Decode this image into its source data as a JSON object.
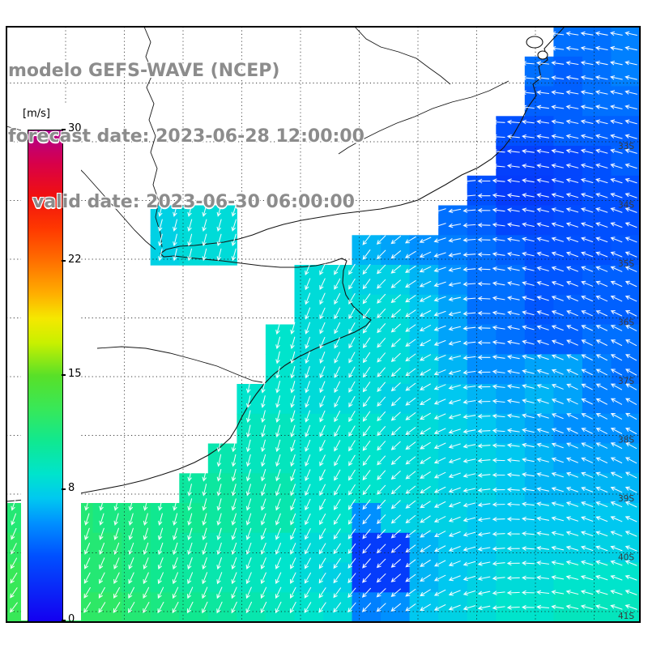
{
  "header": {
    "title": "modelo GEFS-WAVE (NCEP)",
    "forecast_line": "forecast date: 2023-06-28 12:00:00",
    "valid_line": "valid date: 2023-06-30 06:00:00",
    "text_color": "#8c8c8c"
  },
  "colorbar": {
    "unit_label": "[m/s]",
    "tick_labels": [
      "30",
      "22",
      "15",
      "8",
      "0"
    ],
    "tick_values": [
      30,
      22,
      15,
      8,
      0
    ],
    "min": 0,
    "max": 30
  },
  "map": {
    "lat_labels": [
      "33S",
      "34S",
      "35S",
      "36S",
      "37S",
      "38S",
      "39S",
      "40S",
      "41S"
    ],
    "arrow_color": "#ffffff",
    "land_color": "#ffffff",
    "coast_color": "#141414"
  },
  "chart_data": {
    "type": "heatmap",
    "title": "modelo GEFS-WAVE (NCEP)",
    "subtitle": [
      "forecast date: 2023-06-28 12:00:00",
      "valid date: 2023-06-30 06:00:00"
    ],
    "variable": "wind speed with wind direction vectors",
    "units": "m/s",
    "colorbar_range": [
      0,
      30
    ],
    "colorbar_ticks": [
      0,
      8,
      15,
      22,
      30
    ],
    "lat_ticks": [
      "33S",
      "34S",
      "35S",
      "36S",
      "37S",
      "38S",
      "39S",
      "40S",
      "41S"
    ],
    "legend_position": "left colorbar",
    "grid_on": true,
    "grid_cols": 22,
    "grid_rows": 20,
    "colormap_stops": [
      [
        0,
        "#1400f0"
      ],
      [
        4,
        "#0050ff"
      ],
      [
        6,
        "#0090ff"
      ],
      [
        7.5,
        "#00c8f0"
      ],
      [
        9,
        "#00e4cc"
      ],
      [
        11,
        "#10e890"
      ],
      [
        13,
        "#38e858"
      ],
      [
        15,
        "#58e028"
      ],
      [
        17,
        "#c8f000"
      ],
      [
        18.5,
        "#f5e800"
      ],
      [
        20,
        "#ffae00"
      ],
      [
        22,
        "#ff7000"
      ],
      [
        24,
        "#ff3800"
      ],
      [
        26,
        "#f01010"
      ],
      [
        28,
        "#d8004a"
      ],
      [
        30,
        "#b0008f"
      ]
    ],
    "speed_grid_ms": [
      [
        null,
        null,
        null,
        null,
        null,
        null,
        null,
        null,
        null,
        null,
        null,
        null,
        null,
        null,
        null,
        null,
        null,
        null,
        null,
        5,
        5,
        5.5
      ],
      [
        null,
        null,
        null,
        null,
        null,
        null,
        null,
        null,
        null,
        null,
        null,
        null,
        null,
        null,
        null,
        null,
        null,
        null,
        5,
        4.5,
        5,
        5.5
      ],
      [
        null,
        null,
        null,
        null,
        null,
        null,
        null,
        null,
        null,
        null,
        null,
        null,
        null,
        null,
        null,
        null,
        null,
        null,
        4.5,
        4.5,
        5,
        5
      ],
      [
        null,
        null,
        null,
        null,
        null,
        null,
        null,
        null,
        null,
        null,
        null,
        null,
        null,
        null,
        null,
        null,
        null,
        4,
        4,
        4.5,
        4.5,
        4.5
      ],
      [
        null,
        null,
        null,
        null,
        null,
        null,
        null,
        null,
        null,
        null,
        null,
        null,
        null,
        null,
        null,
        null,
        null,
        3.2,
        3.2,
        3.5,
        4,
        4.5
      ],
      [
        null,
        null,
        null,
        null,
        null,
        null,
        null,
        null,
        null,
        null,
        null,
        null,
        null,
        null,
        null,
        null,
        4,
        3,
        3,
        3.5,
        4,
        4
      ],
      [
        null,
        null,
        null,
        null,
        null,
        8,
        8.5,
        8.5,
        null,
        null,
        null,
        null,
        null,
        null,
        null,
        5,
        4.5,
        3.5,
        3.5,
        3.8,
        4,
        4
      ],
      [
        null,
        null,
        null,
        null,
        null,
        8,
        8.5,
        8.5,
        null,
        null,
        null,
        null,
        7,
        6.5,
        6,
        5.5,
        5,
        4.5,
        4,
        4,
        4,
        4.2
      ],
      [
        null,
        null,
        null,
        null,
        null,
        null,
        null,
        null,
        null,
        null,
        8.5,
        8.5,
        8,
        8,
        7,
        6,
        5,
        5,
        4.2,
        4.2,
        4.5,
        4.5
      ],
      [
        null,
        null,
        null,
        null,
        null,
        null,
        null,
        null,
        null,
        null,
        8.5,
        8.5,
        8.5,
        8.5,
        7.5,
        6.5,
        5,
        5,
        4.2,
        4.5,
        4.5,
        4.5
      ],
      [
        null,
        null,
        null,
        null,
        null,
        null,
        null,
        null,
        null,
        9,
        8.5,
        8.5,
        8.5,
        8.5,
        7.5,
        6.5,
        5.5,
        5,
        4.5,
        4.5,
        5,
        5
      ],
      [
        null,
        null,
        null,
        null,
        null,
        null,
        null,
        null,
        null,
        9,
        8.5,
        8.5,
        8.5,
        8.5,
        8,
        7,
        6,
        6,
        6.5,
        6.5,
        5.5,
        5
      ],
      [
        null,
        null,
        null,
        null,
        null,
        null,
        null,
        null,
        9,
        9,
        8.5,
        8.5,
        8.5,
        8,
        8,
        7.5,
        7,
        6.5,
        7,
        6.5,
        5.5,
        5.5
      ],
      [
        null,
        null,
        null,
        null,
        null,
        null,
        null,
        null,
        9.5,
        9.5,
        9,
        9,
        9,
        8.5,
        8.5,
        8,
        7.5,
        7,
        6.5,
        6,
        6,
        6
      ],
      [
        null,
        null,
        null,
        null,
        null,
        null,
        null,
        10,
        9.5,
        9.5,
        9,
        9,
        9,
        8.5,
        8.5,
        8,
        8,
        7.5,
        7,
        6.5,
        6.5,
        6.5
      ],
      [
        null,
        null,
        null,
        null,
        null,
        null,
        10.5,
        10.5,
        10,
        10,
        9,
        9,
        9,
        8.5,
        8.5,
        8,
        8,
        7.5,
        7,
        7,
        7,
        7
      ],
      [
        12,
        12,
        12,
        11.5,
        11.5,
        11,
        11,
        10.5,
        10,
        10,
        9,
        9,
        6,
        8,
        8,
        8,
        7.5,
        7.5,
        7.5,
        7.5,
        7.5,
        7.5
      ],
      [
        12.5,
        12.5,
        12,
        12,
        11.5,
        11,
        10.5,
        10,
        9.5,
        9,
        8.5,
        8.5,
        3,
        3,
        7,
        7.5,
        7.5,
        8,
        8,
        8,
        8,
        8
      ],
      [
        13,
        13,
        12,
        12,
        11.5,
        11,
        10.5,
        10,
        9.5,
        9,
        8.5,
        8,
        3,
        3,
        7,
        7.5,
        8,
        8.5,
        8.5,
        9,
        9,
        9
      ],
      [
        13,
        13,
        12.5,
        12.5,
        12,
        11.5,
        11,
        10.5,
        10,
        9.5,
        9,
        8.5,
        5.5,
        6,
        7.5,
        8,
        8.5,
        9,
        9,
        9.5,
        9.5,
        9.5
      ]
    ],
    "direction_grid_deg": [
      [
        100,
        100,
        100,
        102,
        108,
        125,
        155,
        180,
        188,
        192
      ],
      [
        100,
        100,
        100,
        102,
        108,
        125,
        155,
        182,
        190,
        194
      ],
      [
        98,
        98,
        100,
        102,
        108,
        126,
        158,
        185,
        194,
        198
      ],
      [
        98,
        100,
        104,
        106,
        112,
        124,
        158,
        188,
        198,
        202
      ],
      [
        96,
        97,
        100,
        103,
        108,
        122,
        155,
        190,
        202,
        206
      ],
      [
        96,
        95,
        96,
        98,
        104,
        120,
        152,
        188,
        205,
        210
      ],
      [
        98,
        97,
        98,
        100,
        106,
        122,
        150,
        185,
        205,
        210
      ],
      [
        105,
        103,
        102,
        104,
        110,
        124,
        148,
        180,
        200,
        207
      ],
      [
        118,
        114,
        110,
        108,
        114,
        128,
        148,
        175,
        196,
        203
      ],
      [
        130,
        126,
        122,
        116,
        118,
        132,
        150,
        172,
        192,
        200
      ]
    ],
    "direction_convention": "screen angle degrees: 0=east, 90=south(down), 180=west, 270=north(up)"
  }
}
